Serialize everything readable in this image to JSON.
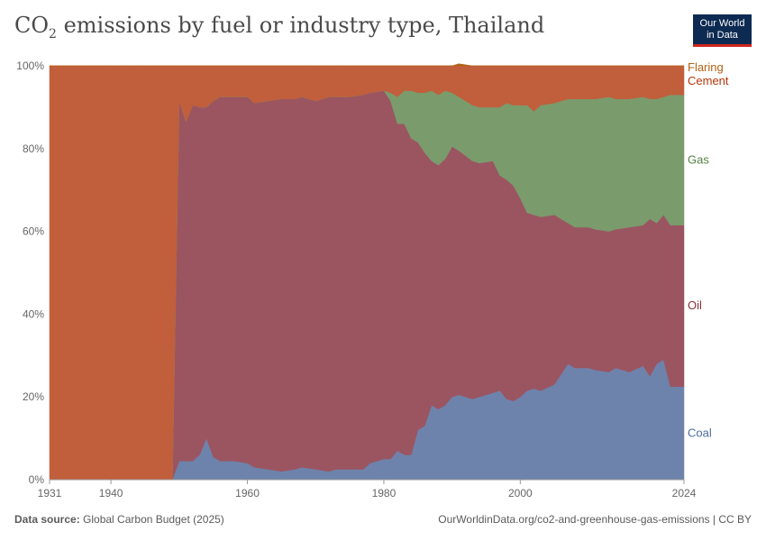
{
  "header": {
    "title_prefix": "CO",
    "title_sub": "2",
    "title_suffix": " emissions by fuel or industry type, Thailand",
    "logo_line1": "Our World",
    "logo_line2": "in Data"
  },
  "footer": {
    "source_label": "Data source:",
    "source_value": " Global Carbon Budget (2025)",
    "url": "OurWorldinData.org/co2-and-greenhouse-gas-emissions | CC BY"
  },
  "chart_data": {
    "type": "area",
    "stacked_percent": true,
    "title": "CO2 emissions by fuel or industry type, Thailand",
    "xlim": [
      1931,
      2024
    ],
    "ylim": [
      0,
      100
    ],
    "x_ticks": [
      1931,
      1940,
      1960,
      1980,
      2000,
      2024
    ],
    "y_ticks": [
      "0%",
      "20%",
      "40%",
      "60%",
      "80%",
      "100%"
    ],
    "y_tick_values": [
      0,
      20,
      40,
      60,
      80,
      100
    ],
    "legend_position": "right",
    "x": [
      1931,
      1949,
      1950,
      1951,
      1952,
      1953,
      1954,
      1955,
      1956,
      1958,
      1960,
      1961,
      1963,
      1965,
      1967,
      1968,
      1970,
      1972,
      1973,
      1975,
      1977,
      1978,
      1980,
      1981,
      1982,
      1983,
      1984,
      1985,
      1986,
      1987,
      1988,
      1989,
      1990,
      1991,
      1993,
      1994,
      1996,
      1997,
      1998,
      1999,
      2000,
      2001,
      2002,
      2003,
      2005,
      2007,
      2008,
      2010,
      2011,
      2013,
      2014,
      2016,
      2018,
      2019,
      2020,
      2021,
      2022,
      2024
    ],
    "series": [
      {
        "name": "Coal",
        "color": "#6d83ac",
        "label_color": "#4c6a9c",
        "values": [
          0,
          0,
          4.5,
          4.5,
          4.5,
          6,
          10,
          5.5,
          4.5,
          4.5,
          4,
          3,
          2.5,
          2,
          2.5,
          3,
          2.5,
          2,
          2.5,
          2.5,
          2.5,
          4,
          5,
          5,
          7,
          6,
          6,
          12,
          13,
          18,
          17,
          18,
          20,
          20.5,
          19.5,
          20,
          21,
          21.5,
          19.5,
          19,
          20,
          21.5,
          22,
          21.5,
          23,
          28,
          27,
          27,
          26.5,
          26,
          27,
          26,
          27.5,
          25,
          28,
          29,
          22.5,
          22.5
        ]
      },
      {
        "name": "Oil",
        "color": "#9a5561",
        "label_color": "#883039",
        "values": [
          0,
          0,
          87,
          82,
          86,
          84,
          80,
          86,
          88,
          88,
          88.5,
          88,
          89,
          90,
          89.5,
          89.5,
          89,
          90.5,
          90,
          90,
          90.5,
          89.5,
          89,
          86.5,
          79,
          80,
          76.5,
          69.5,
          66,
          59,
          59,
          59.5,
          60.5,
          59,
          57.5,
          56.5,
          56,
          52,
          53,
          52,
          48,
          43,
          42,
          42,
          41,
          34,
          34,
          34,
          34,
          34,
          33.5,
          35,
          34,
          38,
          34,
          35,
          39,
          39
        ]
      },
      {
        "name": "Gas",
        "color": "#7a9b6c",
        "label_color": "#578145",
        "values": [
          0,
          0,
          0,
          0,
          0,
          0,
          0,
          0,
          0,
          0,
          0,
          0,
          0,
          0,
          0,
          0,
          0,
          0,
          0,
          0,
          0,
          0,
          0,
          2,
          6.5,
          8,
          11.5,
          12,
          14.5,
          17,
          17,
          16.5,
          13,
          13,
          13.5,
          13.5,
          13,
          16.5,
          18.5,
          19.5,
          22.5,
          26,
          25,
          27,
          27,
          30,
          31,
          31,
          31.5,
          32.5,
          31.5,
          31,
          31,
          29,
          30,
          28.5,
          31.5,
          31.5
        ]
      },
      {
        "name": "Cement",
        "color": "#c15e3c",
        "label_color": "#b13507",
        "values": [
          100,
          100,
          8.5,
          13.5,
          9.5,
          10,
          10,
          8.5,
          7.5,
          7.5,
          7.5,
          9,
          8.5,
          8,
          8,
          7.5,
          8.5,
          7.5,
          7.5,
          7.5,
          7,
          6.5,
          6,
          6.5,
          7.5,
          6,
          6,
          6.5,
          6.5,
          6,
          7,
          6,
          6.5,
          7.5,
          9.5,
          10,
          10,
          10,
          9,
          9.5,
          9.5,
          9.5,
          11,
          9.5,
          9,
          8,
          8,
          8,
          8,
          7.5,
          8,
          8,
          7.5,
          8,
          8,
          7.5,
          7,
          7
        ]
      },
      {
        "name": "Flaring",
        "color": "#b16214",
        "label_color": "#b16214",
        "values": [
          0,
          0,
          0,
          0,
          0,
          0,
          0,
          0,
          0,
          0,
          0,
          0,
          0,
          0,
          0,
          0,
          0,
          0,
          0,
          0,
          0,
          0,
          0,
          0,
          0,
          0,
          0,
          0,
          0,
          0,
          0,
          0,
          0,
          0.5,
          0,
          0,
          0,
          0,
          0,
          0,
          0,
          0,
          0,
          0,
          0,
          0,
          0,
          0,
          0,
          0,
          0,
          0,
          0,
          0,
          0,
          0,
          0,
          0
        ]
      }
    ]
  }
}
